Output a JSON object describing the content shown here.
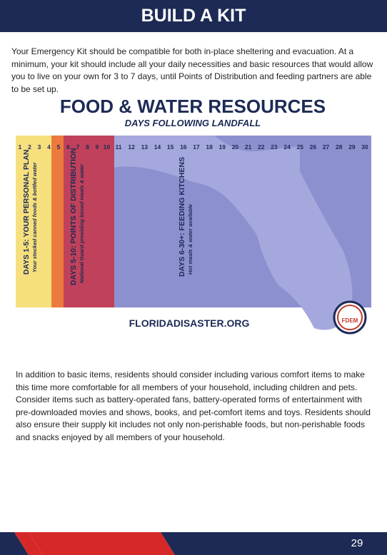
{
  "header": {
    "title": "BUILD A KIT"
  },
  "intro": "Your Emergency Kit should be compatible for both in-place sheltering and evacuation. At a minimum, your kit should include all your daily necessities and basic resources that would allow you to live on your own for 3 to 7 days, until Points of Distribution and feeding partners are able to be set up.",
  "infographic": {
    "title": "FOOD & WATER RESOURCES",
    "subtitle": "DAYS FOLLOWING LANDFALL",
    "days": [
      1,
      2,
      3,
      4,
      5,
      6,
      7,
      8,
      9,
      10,
      11,
      12,
      13,
      14,
      15,
      16,
      17,
      18,
      19,
      20,
      21,
      22,
      23,
      24,
      25,
      26,
      27,
      28,
      29,
      30
    ],
    "phases": [
      {
        "label": "DAYS 1-5: YOUR PERSONAL PLAN",
        "detail": "Your stocked canned foods & bottled water"
      },
      {
        "label": "DAYS 5-10: POINTS OF DISTRIBUTION",
        "detail": "National Guard providing boxed meals & water"
      },
      {
        "label": "DAYS 6-30+: FEEDING KITCHENS",
        "detail": "Hot meals & water available"
      }
    ],
    "website": "FLORIDADISASTER.ORG",
    "logo": "FDEM"
  },
  "body": "In addition to basic items, residents should consider including various comfort items to make this time more comfortable for all members of your household, including children and pets. Consider items such as battery-operated fans, battery-operated forms of entertainment with pre-downloaded movies and shows, books, and pet-comfort items and toys. Residents should also ensure their supply kit includes not only non-perishable foods, but non-perishable foods and snacks enjoyed by all members of your household.",
  "footer": {
    "page": "29"
  }
}
